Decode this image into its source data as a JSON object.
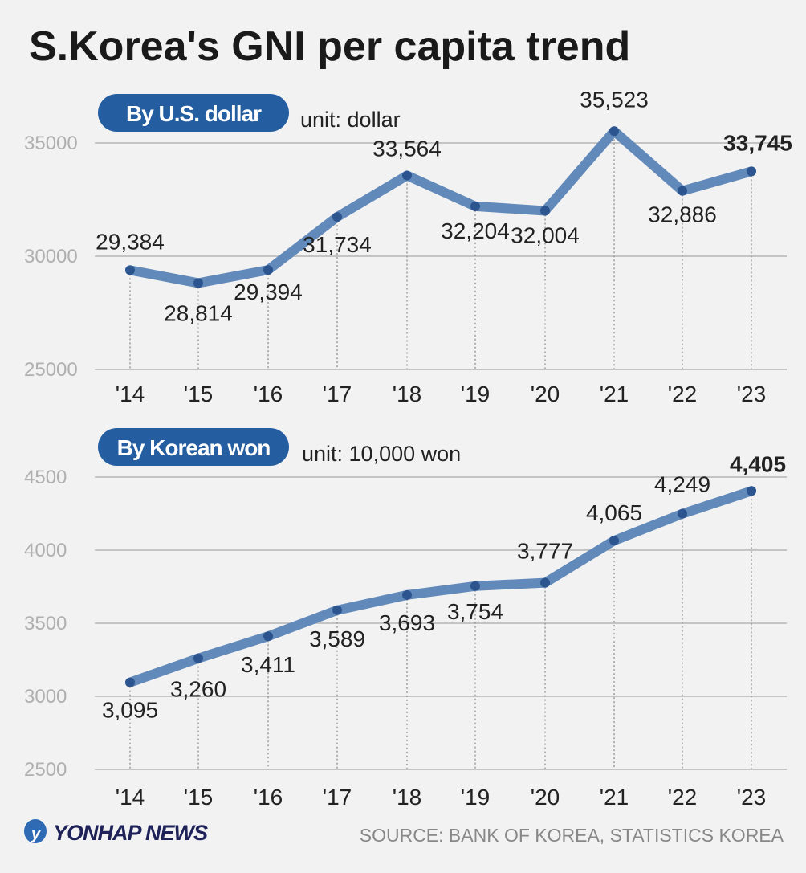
{
  "title": "S.Korea's GNI per capita trend",
  "source": "SOURCE: BANK OF KOREA, STATISTICS KOREA",
  "logo_text": "YONHAP NEWS",
  "colors": {
    "background": "#f2f2f2",
    "pill": "#245ea0",
    "line": "#6189b9",
    "marker": "#2c5590",
    "grid": "#a8a8a8"
  },
  "chart_data": [
    {
      "type": "line",
      "title": "By U.S. dollar",
      "unit": "unit: dollar",
      "categories": [
        "'14",
        "'15",
        "'16",
        "'17",
        "'18",
        "'19",
        "'20",
        "'21",
        "'22",
        "'23"
      ],
      "values": [
        29384,
        28814,
        29394,
        31734,
        33564,
        32204,
        32004,
        35523,
        32886,
        33745
      ],
      "labels": [
        "29,384",
        "28,814",
        "29,394",
        "31,734",
        "33,564",
        "32,204",
        "32,004",
        "35,523",
        "32,886",
        "33,745"
      ],
      "yticks": [
        "35000",
        "30000",
        "25000"
      ],
      "ylim": [
        25000,
        35000
      ],
      "grid": true,
      "highlight_last": true
    },
    {
      "type": "line",
      "title": "By Korean won",
      "unit": "unit: 10,000 won",
      "categories": [
        "'14",
        "'15",
        "'16",
        "'17",
        "'18",
        "'19",
        "'20",
        "'21",
        "'22",
        "'23"
      ],
      "values": [
        3095,
        3260,
        3411,
        3589,
        3693,
        3754,
        3777,
        4065,
        4249,
        4405
      ],
      "labels": [
        "3,095",
        "3,260",
        "3,411",
        "3,589",
        "3,693",
        "3,754",
        "3,777",
        "4,065",
        "4,249",
        "4,405"
      ],
      "yticks": [
        "4500",
        "4000",
        "3500",
        "3000",
        "2500"
      ],
      "ylim": [
        2500,
        4500
      ],
      "grid": true,
      "highlight_last": true
    }
  ]
}
